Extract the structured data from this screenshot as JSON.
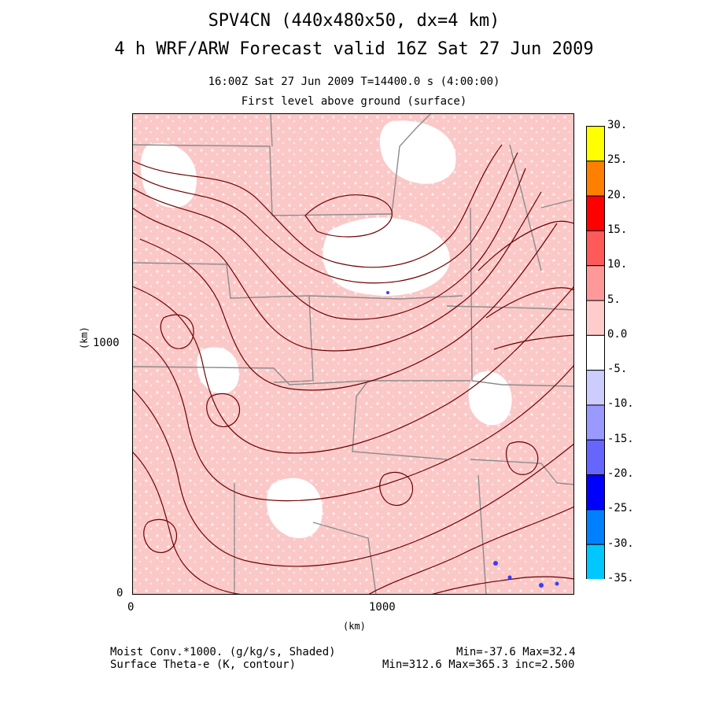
{
  "title": {
    "line1": "SPV4CN (440x480x50, dx=4 km)",
    "line2": "4 h WRF/ARW Forecast valid 16Z Sat 27 Jun 2009",
    "time_line": "16:00Z Sat 27 Jun 2009    T=14400.0 s (4:00:00)",
    "level_line": "First level above ground (surface)"
  },
  "axes": {
    "x_label": "(km)",
    "y_label": "(km)",
    "x_ticks": [
      "0",
      "1000"
    ],
    "y_ticks": [
      "0",
      "1000"
    ],
    "x_range_km": [
      0,
      1760
    ],
    "y_range_km": [
      0,
      1920
    ]
  },
  "colorbar": {
    "labels": [
      "30.",
      "25.",
      "20.",
      "15.",
      "10.",
      "5.",
      "0.0",
      "-5.",
      "-10.",
      "-15.",
      "-20.",
      "-25.",
      "-30.",
      "-35."
    ],
    "colors": [
      "#ffff00",
      "#ff8000",
      "#ff0000",
      "#ff5a5a",
      "#ff9999",
      "#ffcccc",
      "#ffffff",
      "#ccccff",
      "#9999ff",
      "#6666ff",
      "#0000ff",
      "#0080ff",
      "#00c8ff",
      "#00ffff"
    ]
  },
  "footer": {
    "shaded_field": "Moist Conv.*1000. (g/kg/s, Shaded)",
    "contour_field": "Surface Theta-e (K, contour)",
    "shaded_stats": "Min=-37.6 Max=32.4",
    "contour_stats": "Min=312.6 Max=365.3 inc=2.500"
  },
  "map_style": {
    "shade_color": "#fbc8c8",
    "contour_color": "#6e0000",
    "border_color": "#8c8c8c"
  }
}
